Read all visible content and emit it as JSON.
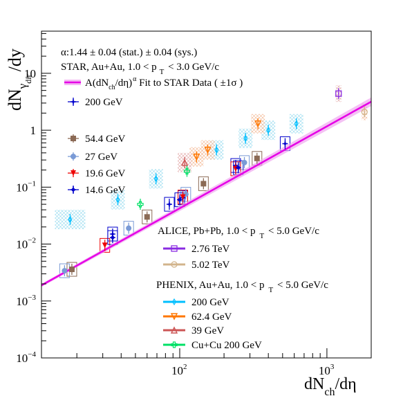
{
  "chart_data": {
    "type": "scatter",
    "title": "",
    "xlabel": {
      "main": "dN",
      "sub": "ch",
      "tail": "/dη"
    },
    "ylabel": {
      "main": "dN",
      "sub": "γ",
      "subsub": "dir",
      "tail": "/dy"
    },
    "x_scale": "log",
    "y_scale": "log",
    "xlim": [
      11.5,
      2000
    ],
    "ylim": [
      0.0001,
      55
    ],
    "x_tick_labels": [
      {
        "v": 100,
        "label": "10",
        "exp": "2"
      },
      {
        "v": 1000,
        "label": "10",
        "exp": "3"
      }
    ],
    "y_tick_labels": [
      {
        "v": 0.0001,
        "label": "10",
        "exp": "−4"
      },
      {
        "v": 0.001,
        "label": "10",
        "exp": "−3"
      },
      {
        "v": 0.01,
        "label": "10",
        "exp": "−2"
      },
      {
        "v": 0.1,
        "label": "10",
        "exp": "−1"
      },
      {
        "v": 1,
        "label": "1",
        "exp": ""
      },
      {
        "v": 10,
        "label": "10",
        "exp": ""
      }
    ],
    "grid": false,
    "annotations": {
      "alpha": "α:1.44 ± 0.04 (stat.) ± 0.04 (sys.)",
      "star_header": "STAR, Au+Au, 1.0 < p",
      "star_header_sub": "T",
      "star_header_tail": " < 3.0 GeV/c",
      "fit_label": "A(dN",
      "fit_label_sub": "ch",
      "fit_label_mid": "/dη)",
      "fit_label_sup": "α",
      "fit_label_tail": " Fit to STAR Data (  ±1σ )",
      "alice_header": "ALICE, Pb+Pb, 1.0 < p",
      "alice_header_sub": "T",
      "alice_header_tail": " < 5.0 GeV/c",
      "phenix_header": "PHENIX, Au+Au, 1.0 < p",
      "phenix_header_sub": "T",
      "phenix_header_tail": " < 5.0 GeV/c"
    },
    "fit": {
      "A": 5.6e-05,
      "alpha": 1.44,
      "x_range": [
        11.5,
        2000
      ],
      "color": "#e600e6",
      "band_color": "#f0a6f0"
    },
    "series": [
      {
        "name": "200 GeV",
        "group": "STAR",
        "marker": "plus",
        "color": "#0000cc",
        "box_color": "#0000cc",
        "points": [
          [
            35,
            0.015
          ],
          [
            85,
            0.05
          ],
          [
            105,
            0.065
          ],
          [
            240,
            0.24
          ],
          [
            520,
            0.58
          ]
        ]
      },
      {
        "name": "54.4 GeV",
        "group": "STAR",
        "marker": "square",
        "color": "#8b6a55",
        "box_color": "#8b6a55",
        "points": [
          [
            18.5,
            0.0036
          ],
          [
            60,
            0.03
          ],
          [
            145,
            0.115
          ],
          [
            335,
            0.32
          ]
        ]
      },
      {
        "name": "27 GeV",
        "group": "STAR",
        "marker": "circle",
        "color": "#7a9ad6",
        "box_color": "#7a9ad6",
        "points": [
          [
            16.5,
            0.0034
          ],
          [
            45,
            0.019
          ],
          [
            110,
            0.075
          ],
          [
            275,
            0.27
          ]
        ]
      },
      {
        "name": "19.6 GeV",
        "group": "STAR",
        "marker": "triangle-down",
        "color": "#ee0000",
        "box_color": "#ee0000",
        "points": [
          [
            31,
            0.0095
          ],
          [
            105,
            0.067
          ],
          [
            240,
            0.21
          ]
        ]
      },
      {
        "name": "14.6 GeV",
        "group": "STAR",
        "marker": "star",
        "color": "#0000cc",
        "box_color": "#0000cc",
        "points": [
          [
            35,
            0.013
          ],
          [
            100,
            0.06
          ],
          [
            250,
            0.22
          ]
        ]
      },
      {
        "name": "2.76 TeV",
        "group": "ALICE",
        "marker": "open-square",
        "color": "#8a2be2",
        "box_color": "#8a2be2",
        "points": [
          [
            1200,
            4.4
          ]
        ]
      },
      {
        "name": "5.02 TeV",
        "group": "ALICE",
        "marker": "open-circle",
        "color": "#d2b48c",
        "box_color": "#d2b48c",
        "points": [
          [
            1800,
            2.1
          ]
        ]
      },
      {
        "name": "200 GeV",
        "group": "PHENIX",
        "marker": "open-diamond",
        "color": "#00bfff",
        "box_color": "#7fd6f0",
        "points": [
          [
            18,
            0.027
          ],
          [
            38,
            0.06
          ],
          [
            69,
            0.14
          ],
          [
            178,
            0.45
          ],
          [
            280,
            0.72
          ],
          [
            400,
            1.0
          ],
          [
            620,
            1.3
          ]
        ]
      },
      {
        "name": "62.4 GeV",
        "group": "PHENIX",
        "marker": "open-triangle-down",
        "color": "#ff7700",
        "box_color": "#f5b080",
        "points": [
          [
            130,
            0.34
          ],
          [
            155,
            0.45
          ],
          [
            340,
            1.3
          ]
        ]
      },
      {
        "name": "39 GeV",
        "group": "PHENIX",
        "marker": "open-triangle",
        "color": "#cc5555",
        "box_color": "#dd9999",
        "points": [
          [
            108,
            0.27
          ]
        ]
      },
      {
        "name": "Cu+Cu  200 GeV",
        "group": "PHENIX",
        "marker": "open-cross",
        "color": "#00e066",
        "box_color": "#00e066",
        "points": [
          [
            54,
            0.05
          ],
          [
            112,
            0.19
          ]
        ]
      }
    ],
    "legends": {
      "star": {
        "fit": "fit_label",
        "items": [
          "200 GeV",
          "54.4 GeV",
          "27 GeV",
          "19.6 GeV",
          "14.6 GeV"
        ]
      },
      "alice": [
        "2.76 TeV",
        "5.02 TeV"
      ],
      "phenix": [
        "200 GeV",
        "62.4 GeV",
        "39 GeV",
        "Cu+Cu  200 GeV"
      ]
    }
  }
}
